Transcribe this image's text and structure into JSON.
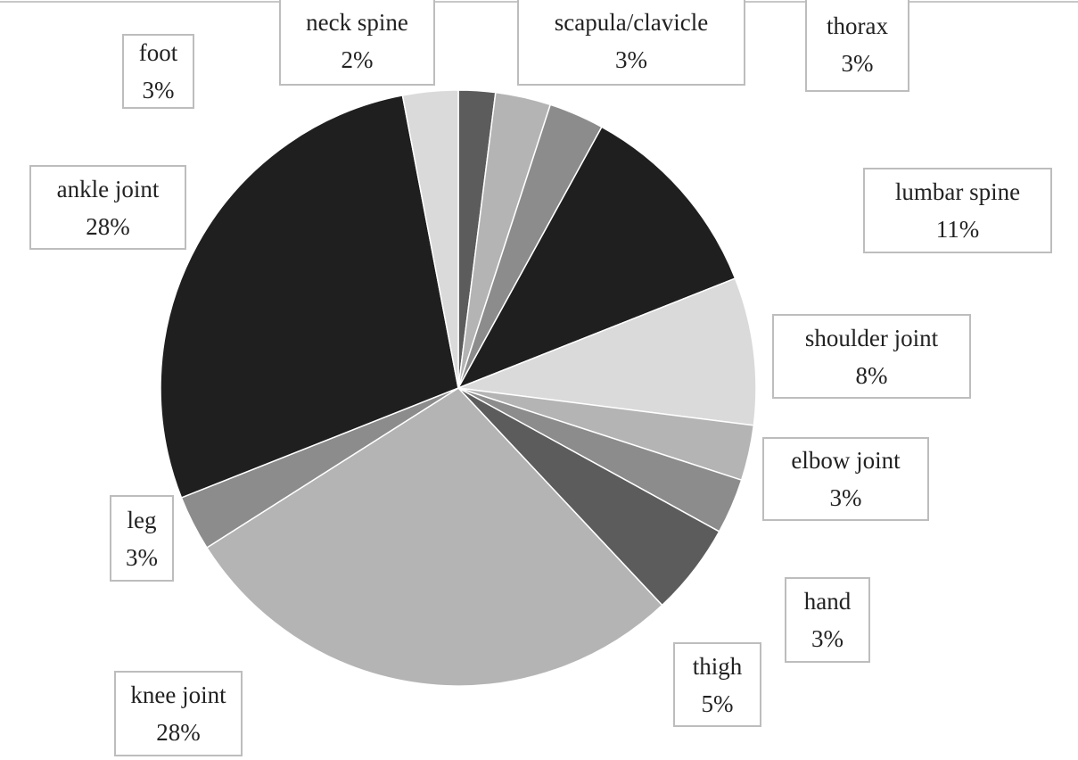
{
  "chart_data": {
    "type": "pie",
    "title": "",
    "start_angle_deg": 0,
    "direction": "clockwise",
    "legend": "none (data labels in boxes)",
    "slices": [
      {
        "label": "neck spine",
        "value": 2,
        "value_label": "2%",
        "color": "#5c5c5c"
      },
      {
        "label": "scapula/clavicle",
        "value": 3,
        "value_label": "3%",
        "color": "#b4b4b4"
      },
      {
        "label": "thorax",
        "value": 3,
        "value_label": "3%",
        "color": "#8c8c8c"
      },
      {
        "label": "lumbar spine",
        "value": 11,
        "value_label": "11%",
        "color": "#1f1f1f"
      },
      {
        "label": "shoulder joint",
        "value": 8,
        "value_label": "8%",
        "color": "#dadada"
      },
      {
        "label": "elbow joint",
        "value": 3,
        "value_label": "3%",
        "color": "#b4b4b4"
      },
      {
        "label": "hand",
        "value": 3,
        "value_label": "3%",
        "color": "#8c8c8c"
      },
      {
        "label": "thigh",
        "value": 5,
        "value_label": "5%",
        "color": "#5c5c5c"
      },
      {
        "label": "knee joint",
        "value": 28,
        "value_label": "28%",
        "color": "#b4b4b4"
      },
      {
        "label": "leg",
        "value": 3,
        "value_label": "3%",
        "color": "#8c8c8c"
      },
      {
        "label": "ankle joint",
        "value": 28,
        "value_label": "28%",
        "color": "#1f1f1f"
      },
      {
        "label": "foot",
        "value": 3,
        "value_label": "3%",
        "color": "#dadada"
      }
    ]
  }
}
